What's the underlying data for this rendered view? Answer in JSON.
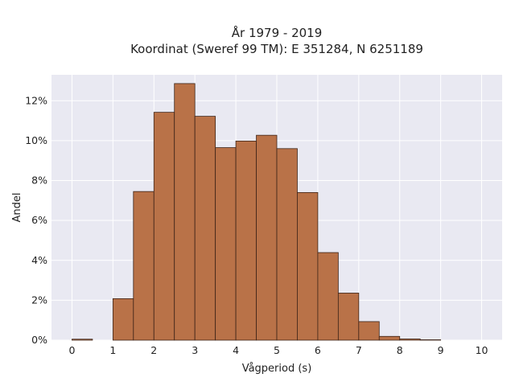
{
  "chart_data": {
    "type": "bar",
    "title_line1": "År 1979 - 2019",
    "title_line2": "Koordinat (Sweref 99 TM): E 351284, N 6251189",
    "xlabel": "Vågperiod (s)",
    "ylabel": "Andel",
    "bin_width": 0.5,
    "bins_start": [
      0,
      0.5,
      1,
      1.5,
      2,
      2.5,
      3,
      3.5,
      4,
      4.5,
      5,
      5.5,
      6,
      6.5,
      7,
      7.5,
      8,
      8.5
    ],
    "values": [
      0.05,
      0,
      2.08,
      7.45,
      11.42,
      12.86,
      11.22,
      9.65,
      9.98,
      10.27,
      9.6,
      7.4,
      4.39,
      2.36,
      0.93,
      0.19,
      0.06,
      0.02
    ],
    "xlim": [
      -0.5,
      10.5
    ],
    "ylim": [
      0,
      13.3
    ],
    "x_ticks": [
      "0",
      "1",
      "2",
      "3",
      "4",
      "5",
      "6",
      "7",
      "8",
      "9",
      "10"
    ],
    "y_ticks": [
      "0%",
      "2%",
      "4%",
      "6%",
      "8%",
      "10%",
      "12%"
    ],
    "y_tick_values": [
      0,
      2,
      4,
      6,
      8,
      10,
      12
    ],
    "x_tick_values": [
      0,
      1,
      2,
      3,
      4,
      5,
      6,
      7,
      8,
      9,
      10
    ],
    "grid": true,
    "colors": {
      "bar_fill": "#b97248",
      "bar_edge": "#3d2418",
      "plot_bg": "#e9e9f2",
      "grid": "#ffffff"
    }
  }
}
